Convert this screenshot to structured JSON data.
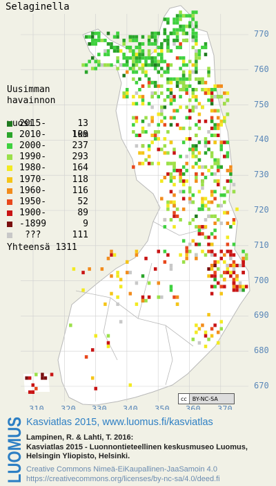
{
  "map": {
    "title": "Selaginella",
    "legend": {
      "heading": [
        "Uusimman",
        "havainnon"
      ],
      "column_headers": {
        "year": "vuosi",
        "count": "lkm"
      },
      "entries": [
        {
          "label": "2015-",
          "count": "13",
          "color": "#1f7a1f"
        },
        {
          "label": "2010-",
          "count": "109",
          "color": "#2aa52a"
        },
        {
          "label": "2000-",
          "count": "237",
          "color": "#3fd13f"
        },
        {
          "label": "1990-",
          "count": "293",
          "color": "#9be04a"
        },
        {
          "label": "1980-",
          "count": "164",
          "color": "#f2ea22"
        },
        {
          "label": "1970-",
          "count": "118",
          "color": "#f5c518"
        },
        {
          "label": "1960-",
          "count": "116",
          "color": "#f28c1c"
        },
        {
          "label": "1950-",
          "count": "52",
          "color": "#e8481c"
        },
        {
          "label": "1900-",
          "count": "89",
          "color": "#c81414"
        },
        {
          "label": "-1899",
          "count": "9",
          "color": "#7a0f0f"
        },
        {
          "label": "???",
          "count": "111",
          "color": "#c8c8c8"
        }
      ],
      "total_label": "Yhteensä",
      "total": "1311"
    },
    "x_ticks": [
      "310",
      "320",
      "330",
      "340",
      "350",
      "360",
      "370"
    ],
    "y_ticks": [
      "770",
      "760",
      "750",
      "740",
      "730",
      "720",
      "710",
      "700",
      "690",
      "680",
      "670"
    ],
    "colors": {
      "land": "#ffffff",
      "background": "#f1f1e6",
      "grid": "#cfcfcf",
      "tick_text": "#5a87b8",
      "border": "#b8b8b8"
    },
    "license_badge": {
      "left": "cc",
      "right": "BY-NC-SA"
    }
  },
  "footer": {
    "brand": "LUOMUS",
    "link": "Kasviatlas 2015, www.luomus.fi/kasviatlas",
    "citation": [
      "Lampinen, R. & Lahti, T. 2016:",
      "Kasviatlas 2015 - Luonnontieteellinen keskusmuseo Luomus,",
      "Helsingin Yliopisto, Helsinki."
    ],
    "license": [
      "Creative Commons Nimeä-EiKaupallinen-JaaSamoin 4.0",
      "https://creativecommons.org/licenses/by-nc-sa/4.0/deed.fi"
    ],
    "brand_color": "#2d7fc4"
  }
}
